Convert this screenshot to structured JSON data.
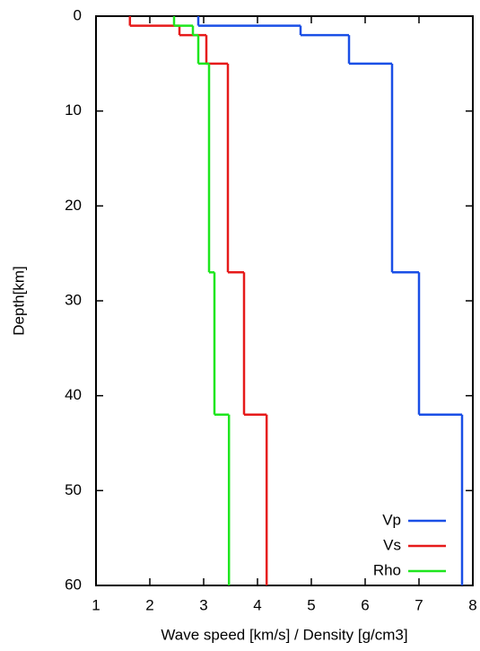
{
  "chart_data": {
    "type": "step",
    "x_label": "Wave speed [km/s] / Density [g/cm3]",
    "y_label": "Depth[km]",
    "layer_depths": [
      0,
      1,
      2,
      5,
      27,
      42,
      60
    ],
    "series": [
      {
        "name": "Vp",
        "color": "#1a4fe6",
        "values": [
          2.9,
          4.8,
          5.7,
          6.5,
          7.0,
          7.8
        ]
      },
      {
        "name": "Vs",
        "color": "#e61a1a",
        "values": [
          1.63,
          2.55,
          3.05,
          3.45,
          3.75,
          4.17
        ]
      },
      {
        "name": "Rho",
        "color": "#1ee61e",
        "values": [
          2.45,
          2.8,
          2.9,
          3.1,
          3.2,
          3.47
        ]
      }
    ],
    "xlim": [
      1,
      8
    ],
    "xticks": [
      1,
      2,
      3,
      4,
      5,
      6,
      7,
      8
    ],
    "ylim": [
      0,
      60
    ],
    "yticks": [
      0,
      10,
      20,
      30,
      40,
      50,
      60
    ],
    "y_inverted": true,
    "grid": false,
    "legend": "bottom-right"
  }
}
